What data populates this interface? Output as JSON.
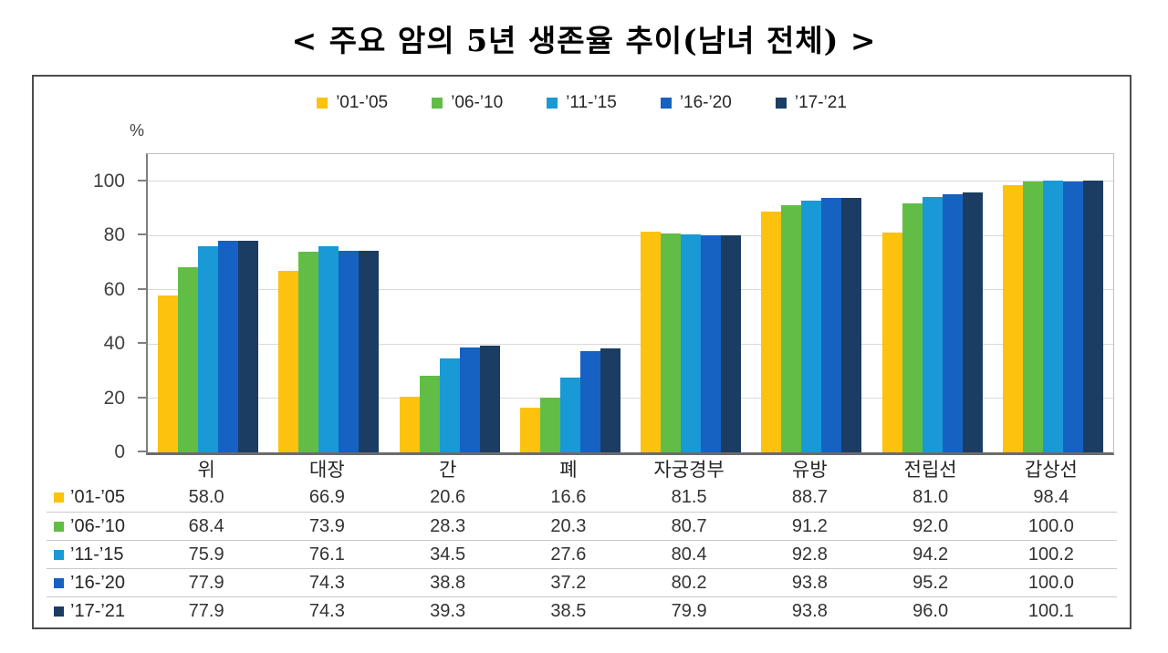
{
  "title": "< 주요 암의 5년 생존율 추이(남녀 전체) >",
  "y_axis": {
    "unit_label": "%",
    "ticks": [
      0,
      20,
      40,
      60,
      80,
      100
    ]
  },
  "chart_data": {
    "type": "bar",
    "title": "주요 암의 5년 생존율 추이(남녀 전체)",
    "categories": [
      "위",
      "대장",
      "간",
      "폐",
      "자궁경부",
      "유방",
      "전립선",
      "갑상선"
    ],
    "series": [
      {
        "name": "’01-’05",
        "color": "#FDC20E",
        "values": [
          58.0,
          66.9,
          20.6,
          16.6,
          81.5,
          88.7,
          81.0,
          98.4
        ]
      },
      {
        "name": "’06-’10",
        "color": "#62BD47",
        "values": [
          68.4,
          73.9,
          28.3,
          20.3,
          80.7,
          91.2,
          92.0,
          100.0
        ]
      },
      {
        "name": "’11-’15",
        "color": "#1999D6",
        "values": [
          75.9,
          76.1,
          34.5,
          27.6,
          80.4,
          92.8,
          94.2,
          100.2
        ]
      },
      {
        "name": "’16-’20",
        "color": "#1562C2",
        "values": [
          77.9,
          74.3,
          38.8,
          37.2,
          80.2,
          93.8,
          95.2,
          100.0
        ]
      },
      {
        "name": "’17-’21",
        "color": "#1C3D63",
        "values": [
          77.9,
          74.3,
          39.3,
          38.5,
          79.9,
          93.8,
          96.0,
          100.1
        ]
      }
    ],
    "ylabel": "%",
    "ylim": [
      0,
      110
    ],
    "grid": true,
    "legend_position": "top",
    "data_table_shown": true
  }
}
